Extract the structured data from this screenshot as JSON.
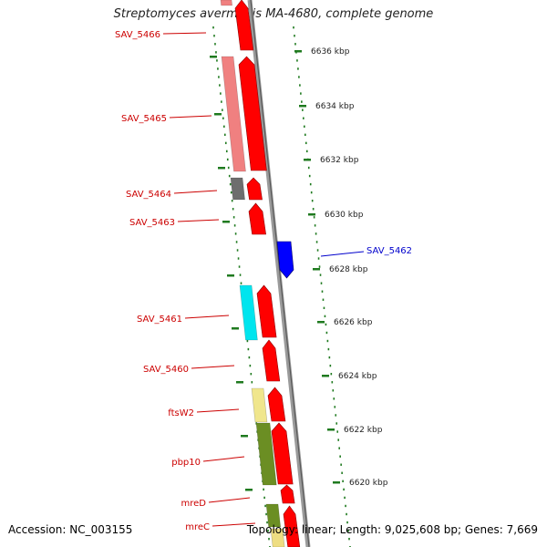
{
  "title": "Streptomyces avermitilis MA-4680, complete genome",
  "footer": {
    "accession": "Accession: NC_003155",
    "topology": "Topology: linear; Length: 9,025,608 bp; Genes: 7,669"
  },
  "colors": {
    "backbone": "#7a7a7a",
    "forward_gene": "#ff0000",
    "reverse_gene": "#0000ff",
    "scale_tick": "#1f7a1f",
    "left_label": "#cc0000",
    "right_label": "#0000cc"
  },
  "scale_labels": [
    "6636 kbp",
    "6634 kbp",
    "6632 kbp",
    "6630 kbp",
    "6628 kbp",
    "6626 kbp",
    "6624 kbp",
    "6622 kbp",
    "6620 kbp"
  ],
  "left_gene_labels": [
    "SAV_5466",
    "SAV_5465",
    "SAV_5464",
    "SAV_5463",
    "SAV_5461",
    "SAV_5460",
    "ftsW2",
    "pbp10",
    "mreD",
    "mreC"
  ],
  "right_gene_labels": [
    "SAV_5462"
  ],
  "left_track_colors": [
    "#f08080",
    "#6e6e6e",
    "#00e5ee",
    "#f0e68c",
    "#6b8e23",
    "#6b8e23",
    "#eedd82"
  ]
}
